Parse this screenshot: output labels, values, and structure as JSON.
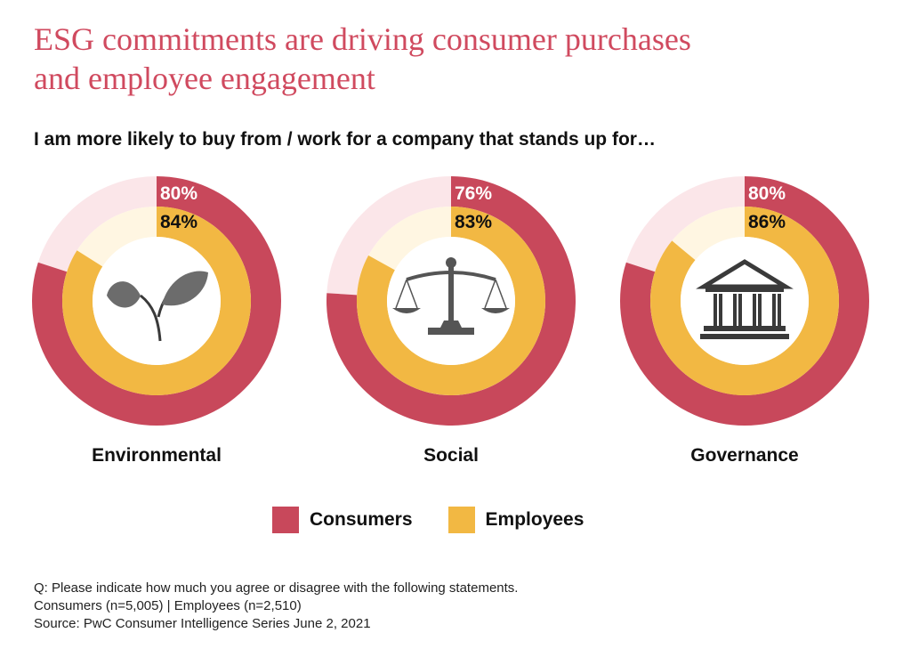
{
  "header": {
    "title_line1": "ESG commitments are driving consumer purchases",
    "title_line2": "and employee engagement",
    "subtitle": "I am more likely to buy from / work for a company that stands up for…"
  },
  "chart_data": {
    "type": "pie",
    "subtype": "nested-donut",
    "unit": "%",
    "categories": [
      "Environmental",
      "Social",
      "Governance"
    ],
    "series": [
      {
        "name": "Consumers",
        "values": [
          80,
          76,
          80
        ],
        "color": "#c8485b"
      },
      {
        "name": "Employees",
        "values": [
          84,
          83,
          86
        ],
        "color": "#f2b843"
      }
    ],
    "labels": {
      "Consumers": [
        "80%",
        "76%",
        "80%"
      ],
      "Employees": [
        "84%",
        "83%",
        "86%"
      ]
    },
    "remainder_colors": {
      "Consumers": "#fbe6e9",
      "Employees": "#fff6e2"
    },
    "icons": [
      "plant-icon",
      "scales-icon",
      "courthouse-icon"
    ],
    "legend_position": "bottom-center"
  },
  "legend": {
    "consumers": "Consumers",
    "employees": "Employees",
    "consumers_color": "#c8485b",
    "employees_color": "#f2b843"
  },
  "notes": {
    "question": "Q: Please indicate how much you agree or disagree with the following statements.",
    "sample": "Consumers (n=5,005) | Employees (n=2,510)",
    "source": "Source: PwC Consumer Intelligence Series June 2, 2021"
  }
}
